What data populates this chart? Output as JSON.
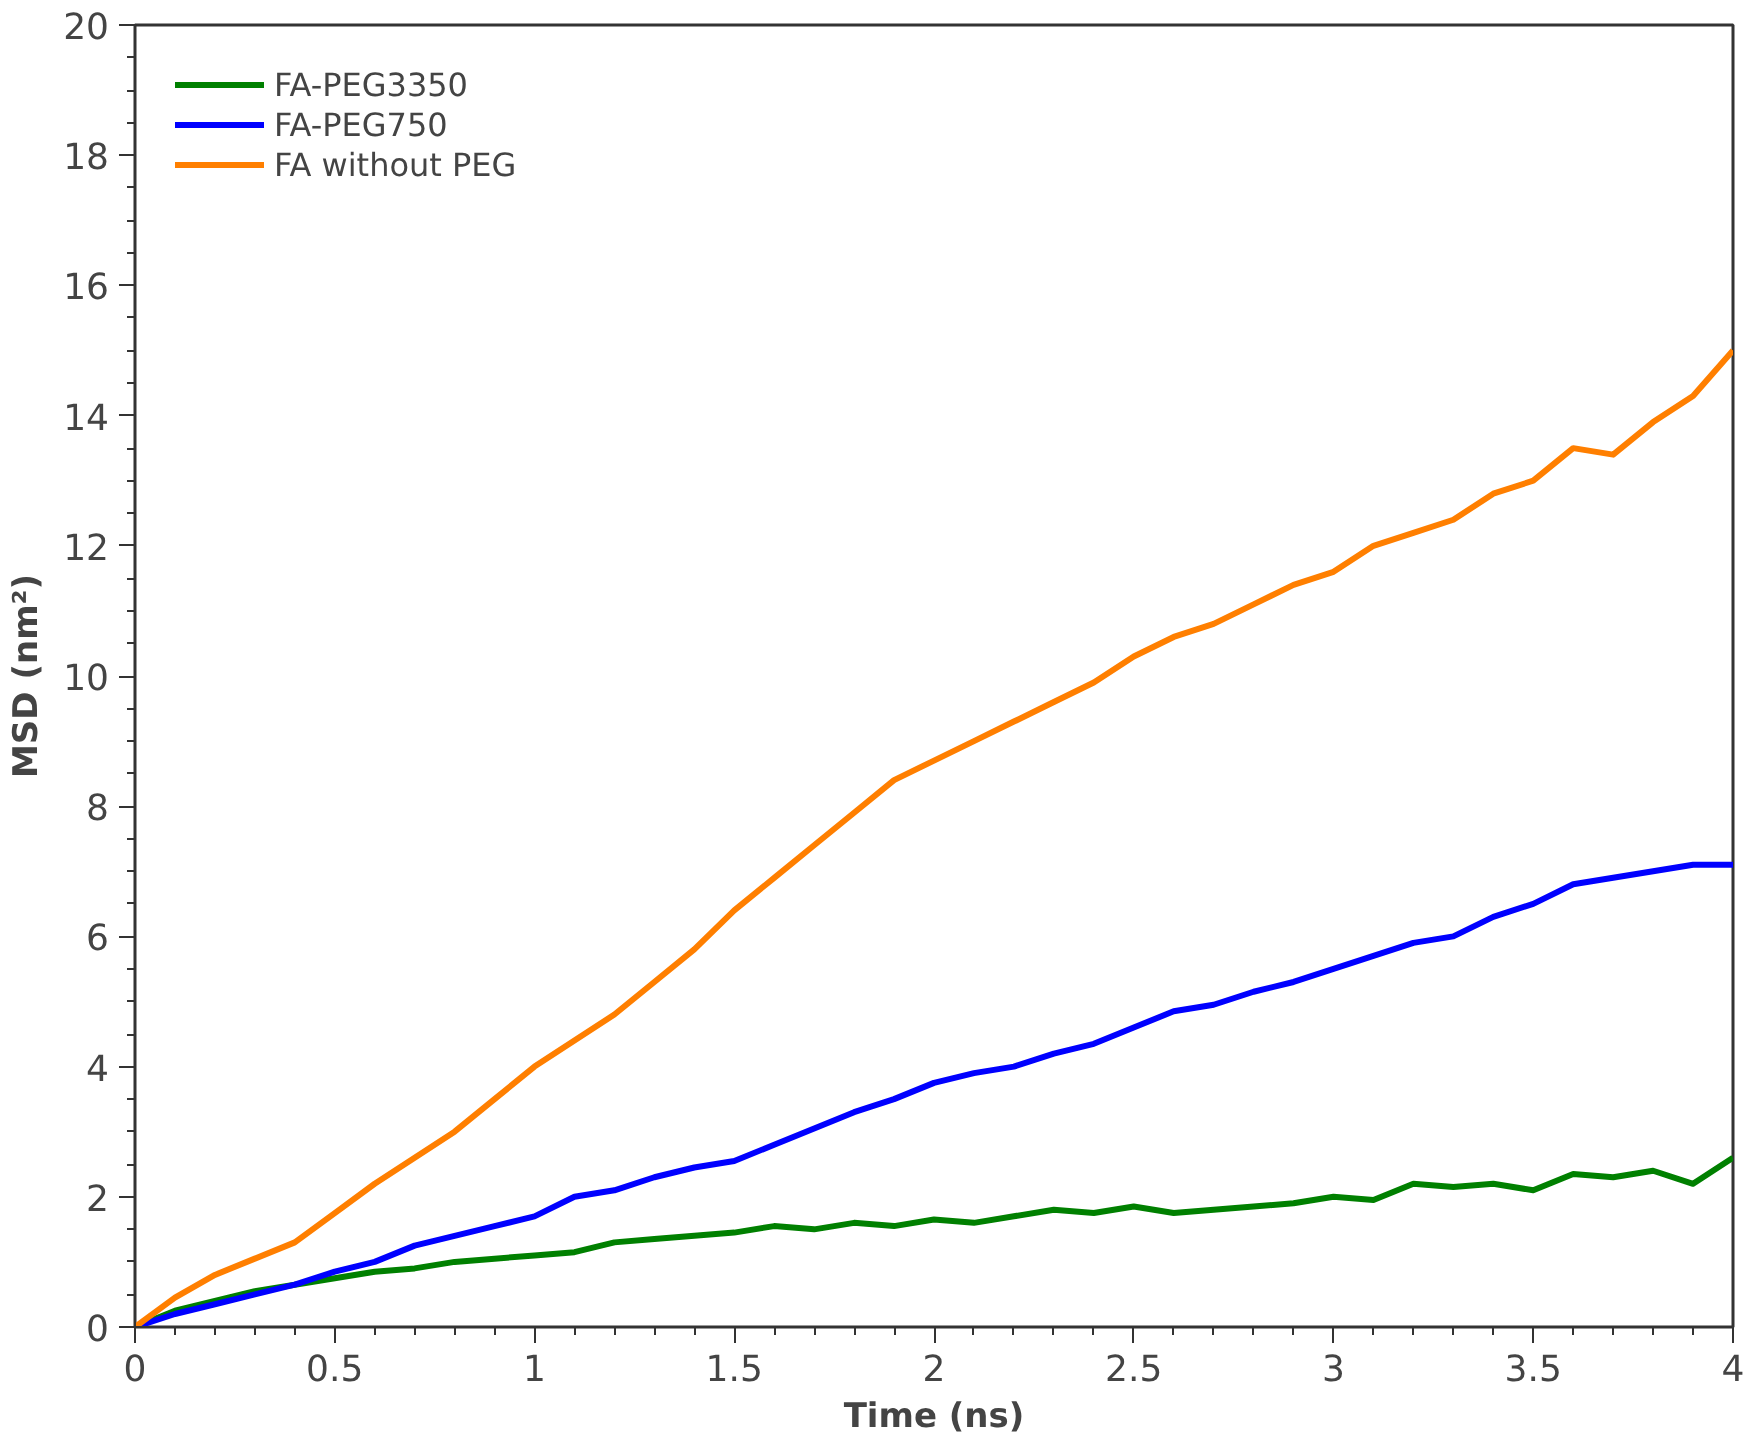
{
  "chart_data": {
    "type": "line",
    "xlabel": "Time (ns)",
    "ylabel": "MSD (nm²)",
    "x": [
      0,
      0.1,
      0.2,
      0.3,
      0.4,
      0.5,
      0.6,
      0.7,
      0.8,
      0.9,
      1.0,
      1.1,
      1.2,
      1.3,
      1.4,
      1.5,
      1.6,
      1.7,
      1.8,
      1.9,
      2.0,
      2.1,
      2.2,
      2.3,
      2.4,
      2.5,
      2.6,
      2.7,
      2.8,
      2.9,
      3.0,
      3.1,
      3.2,
      3.3,
      3.4,
      3.5,
      3.6,
      3.7,
      3.8,
      3.9,
      4.0
    ],
    "series": [
      {
        "name": "FA-PEG3350",
        "color": "#008000",
        "values": [
          0,
          0.25,
          0.4,
          0.55,
          0.65,
          0.75,
          0.85,
          0.9,
          1.0,
          1.05,
          1.1,
          1.15,
          1.3,
          1.35,
          1.4,
          1.45,
          1.55,
          1.5,
          1.6,
          1.55,
          1.65,
          1.6,
          1.7,
          1.8,
          1.75,
          1.85,
          1.75,
          1.8,
          1.85,
          1.9,
          2.0,
          1.95,
          2.2,
          2.15,
          2.2,
          2.1,
          2.35,
          2.3,
          2.4,
          2.2,
          2.6
        ]
      },
      {
        "name": "FA-PEG750",
        "color": "#0000ff",
        "values": [
          0,
          0.2,
          0.35,
          0.5,
          0.65,
          0.85,
          1.0,
          1.25,
          1.4,
          1.55,
          1.7,
          2.0,
          2.1,
          2.3,
          2.45,
          2.55,
          2.8,
          3.05,
          3.3,
          3.5,
          3.75,
          3.9,
          4.0,
          4.2,
          4.35,
          4.6,
          4.85,
          4.95,
          5.15,
          5.3,
          5.5,
          5.7,
          5.9,
          6.0,
          6.3,
          6.5,
          6.8,
          6.9,
          7.0,
          7.1,
          7.1
        ]
      },
      {
        "name": "FA without PEG",
        "color": "#ff7f00",
        "values": [
          0,
          0.45,
          0.8,
          1.05,
          1.3,
          1.75,
          2.2,
          2.6,
          3.0,
          3.5,
          4.0,
          4.4,
          4.8,
          5.3,
          5.8,
          6.4,
          6.9,
          7.4,
          7.9,
          8.4,
          8.7,
          9.0,
          9.3,
          9.6,
          9.9,
          10.3,
          10.6,
          10.8,
          11.1,
          11.4,
          11.6,
          12.0,
          12.2,
          12.4,
          12.8,
          13.0,
          13.5,
          13.4,
          13.9,
          14.3,
          15.0
        ]
      }
    ],
    "xlim": [
      0,
      4
    ],
    "ylim": [
      0,
      20
    ],
    "xticks": [
      0,
      0.5,
      1,
      1.5,
      2,
      2.5,
      3,
      3.5,
      4
    ],
    "yticks": [
      0,
      2,
      4,
      6,
      8,
      10,
      12,
      14,
      16,
      18,
      20
    ],
    "grid": false,
    "legend": "top left",
    "marker": "none",
    "line_style": "solid"
  }
}
